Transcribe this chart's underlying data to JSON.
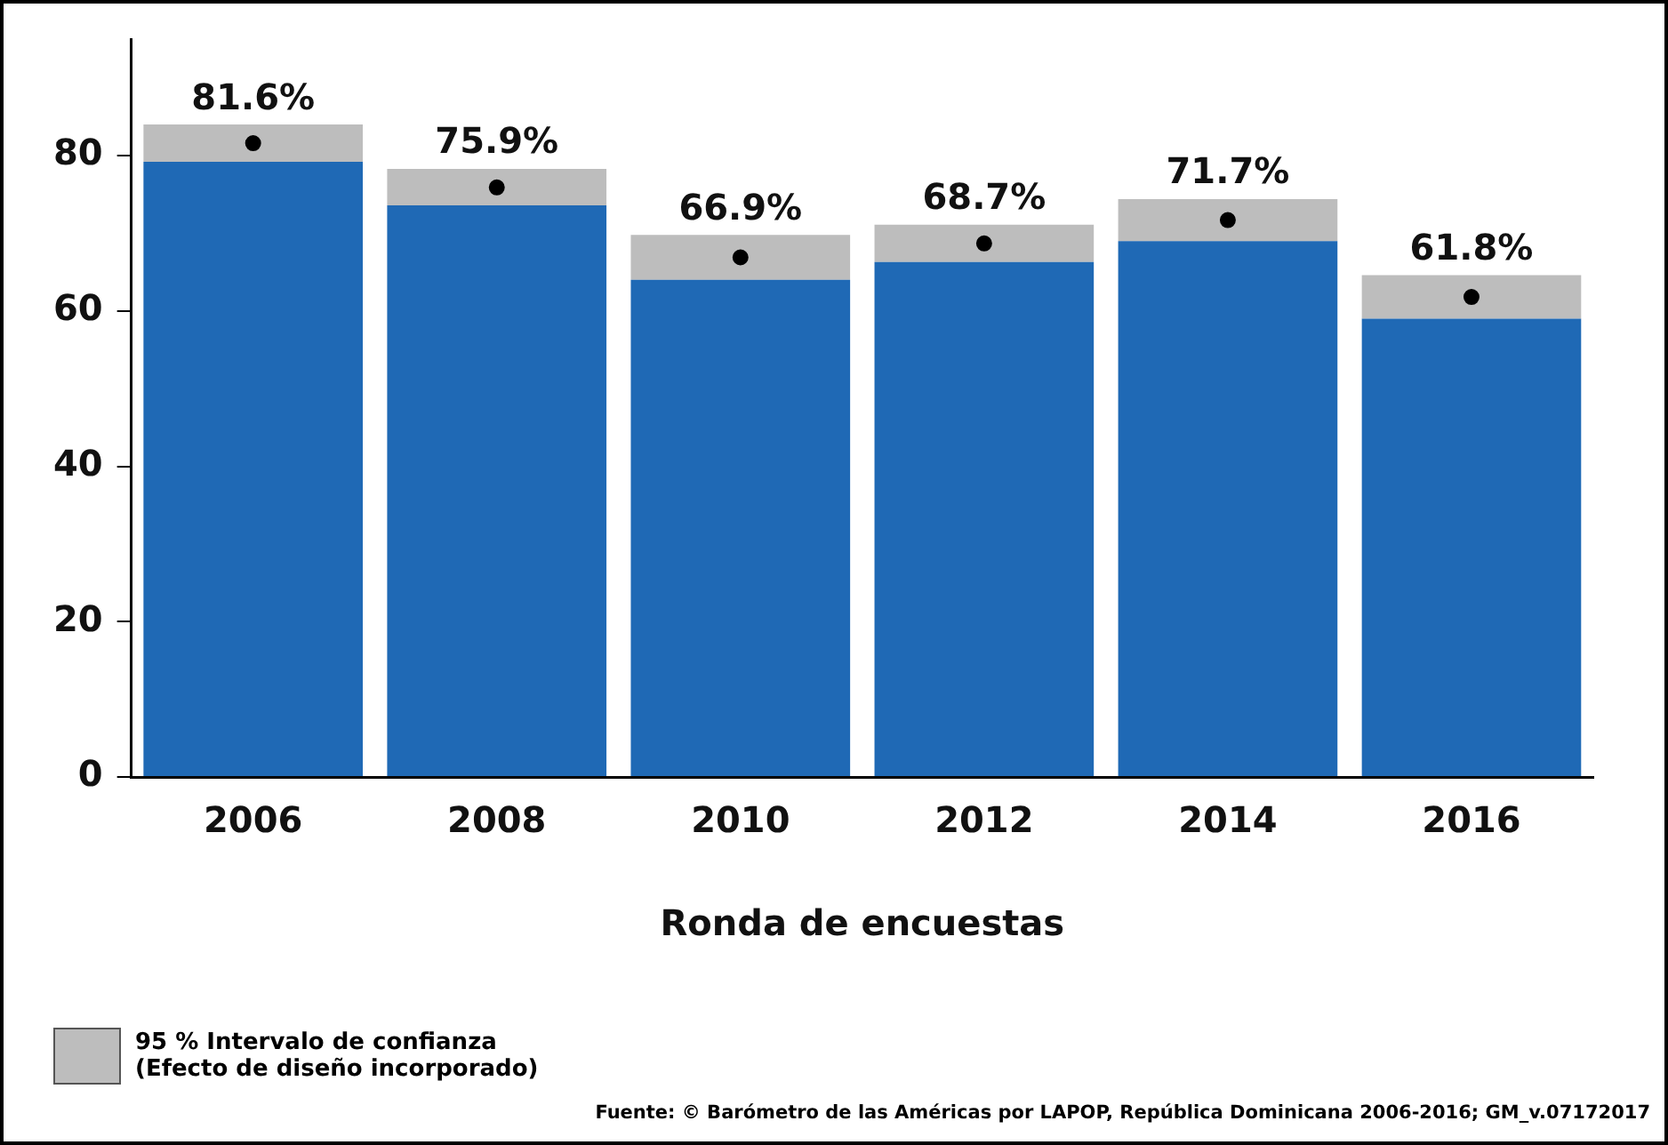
{
  "chart_data": {
    "type": "bar",
    "stacked": true,
    "xlabel": "Ronda de encuestas",
    "categories": [
      "2006",
      "2008",
      "2010",
      "2012",
      "2014",
      "2016"
    ],
    "series": [
      {
        "color": "#1f69b5",
        "values": [
          79.2,
          73.6,
          64.0,
          66.3,
          69.0,
          59.0
        ]
      },
      {
        "name": "95 % Intervalo de confianza\n(Efecto de diseño incorporado)",
        "color": "#bdbdbd",
        "values": [
          4.8,
          4.7,
          5.8,
          4.8,
          5.4,
          5.6
        ]
      },
      {
        "type": "scatter",
        "color": "#000000",
        "values": [
          81.6,
          75.9,
          66.9,
          68.7,
          71.7,
          61.8
        ],
        "value_labels": [
          "81.6%",
          "75.9%",
          "66.9%",
          "68.7%",
          "71.7%",
          "61.8%"
        ]
      }
    ],
    "marker": "circle",
    "ylim": [
      0,
      95
    ],
    "yticks": [
      0,
      20,
      40,
      60,
      80
    ],
    "grid": false,
    "legend": "bottom left",
    "annotations": [
      "Fuente: © Barómetro de las Américas por LAPOP, República Dominicana 2006-2016; GM_v.07172017"
    ]
  }
}
